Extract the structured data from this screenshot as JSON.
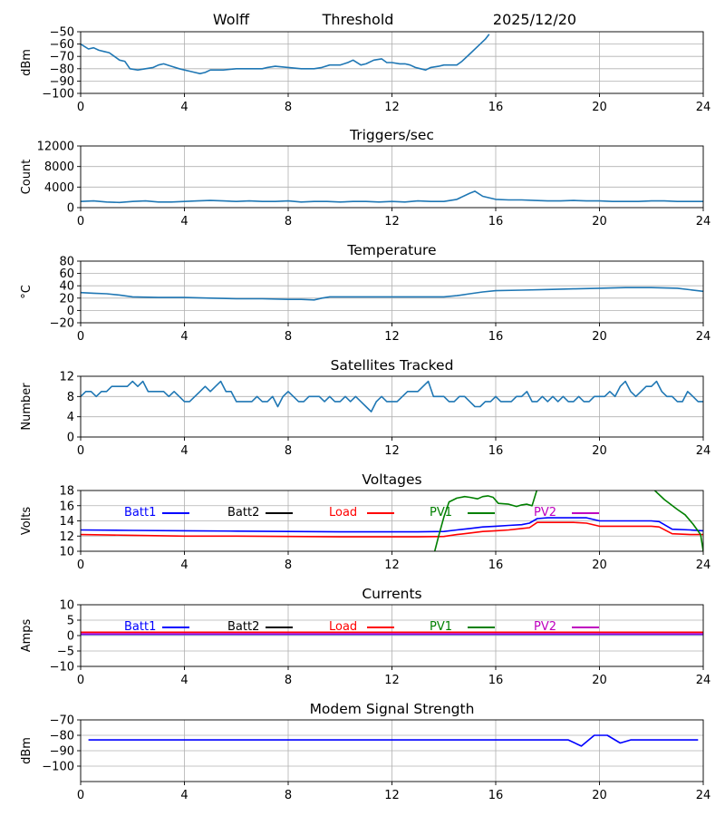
{
  "header": {
    "station": "Wolff",
    "center_title": "Threshold",
    "date": "2025/12/20"
  },
  "colors": {
    "default": "#1f77b4",
    "batt1": "#0000ff",
    "batt2": "#000000",
    "load": "#ff0000",
    "pv1": "#008000",
    "pv2": "#bf00bf",
    "grid": "#b0b0b0",
    "modem": "#0000ff"
  },
  "chart_data": [
    {
      "id": "threshold",
      "type": "line",
      "title": "",
      "ylabel": "dBm",
      "xlim": [
        0,
        24
      ],
      "xticks": [
        0,
        4,
        8,
        12,
        16,
        20,
        24
      ],
      "ylim": [
        -100,
        -50
      ],
      "yticks": [
        -100,
        -90,
        -80,
        -70,
        -60,
        -50
      ],
      "grid": true,
      "series": [
        {
          "name": "Threshold",
          "color": "#1f77b4",
          "x": [
            0,
            0.15,
            0.3,
            0.5,
            0.7,
            0.9,
            1.1,
            1.3,
            1.5,
            1.7,
            1.9,
            2.2,
            2.5,
            2.8,
            3.0,
            3.2,
            3.5,
            3.8,
            4.0,
            4.2,
            4.4,
            4.6,
            4.8,
            5.0,
            5.5,
            6.0,
            6.5,
            7.0,
            7.2,
            7.5,
            8.0,
            8.5,
            9.0,
            9.3,
            9.6,
            10.0,
            10.3,
            10.5,
            10.8,
            11.0,
            11.3,
            11.6,
            11.8,
            12.0,
            12.3,
            12.5,
            12.7,
            12.9,
            13.1,
            13.3,
            13.5,
            13.8,
            14.0,
            14.3,
            14.5,
            14.7,
            15.0,
            15.3,
            15.6,
            15.75
          ],
          "y": [
            -60,
            -62,
            -64,
            -63,
            -65,
            -66,
            -67,
            -70,
            -73,
            -74,
            -80,
            -81,
            -80,
            -79,
            -77,
            -76,
            -78,
            -80,
            -81,
            -82,
            -83,
            -84,
            -83,
            -81,
            -81,
            -80,
            -80,
            -80,
            -79,
            -78,
            -79,
            -80,
            -80,
            -79,
            -77,
            -77,
            -75,
            -73,
            -77,
            -76,
            -73,
            -72,
            -75,
            -75,
            -76,
            -76,
            -77,
            -79,
            -80,
            -81,
            -79,
            -78,
            -77,
            -77,
            -77,
            -74,
            -68,
            -62,
            -56,
            -52
          ]
        }
      ]
    },
    {
      "id": "triggers",
      "type": "line",
      "title": "Triggers/sec",
      "ylabel": "Count",
      "xlim": [
        0,
        24
      ],
      "xticks": [
        0,
        4,
        8,
        12,
        16,
        20,
        24
      ],
      "ylim": [
        0,
        12000
      ],
      "yticks": [
        0,
        4000,
        8000,
        12000
      ],
      "grid": true,
      "series": [
        {
          "name": "Triggers",
          "color": "#1f77b4",
          "x": [
            0,
            0.5,
            1,
            1.5,
            2,
            2.5,
            3,
            3.5,
            4,
            4.5,
            5,
            5.5,
            6,
            6.5,
            7,
            7.5,
            8,
            8.5,
            9,
            9.5,
            10,
            10.5,
            11,
            11.5,
            12,
            12.5,
            13,
            13.5,
            14,
            14.5,
            15,
            15.2,
            15.5,
            16,
            16.5,
            17,
            17.5,
            18,
            18.5,
            19,
            19.5,
            20,
            20.5,
            21,
            21.5,
            22,
            22.5,
            23,
            23.5,
            24
          ],
          "y": [
            1200,
            1300,
            1100,
            1000,
            1200,
            1300,
            1100,
            1100,
            1200,
            1300,
            1400,
            1300,
            1200,
            1300,
            1200,
            1200,
            1300,
            1100,
            1200,
            1200,
            1100,
            1200,
            1200,
            1100,
            1200,
            1100,
            1300,
            1200,
            1200,
            1600,
            2800,
            3200,
            2200,
            1600,
            1500,
            1500,
            1400,
            1300,
            1300,
            1400,
            1300,
            1300,
            1200,
            1200,
            1200,
            1300,
            1300,
            1200,
            1200,
            1200
          ]
        }
      ]
    },
    {
      "id": "temperature",
      "type": "line",
      "title": "Temperature",
      "ylabel": "°C",
      "xlim": [
        0,
        24
      ],
      "xticks": [
        0,
        4,
        8,
        12,
        16,
        20,
        24
      ],
      "ylim": [
        -20,
        80
      ],
      "yticks": [
        -20,
        0,
        20,
        40,
        60,
        80
      ],
      "grid": true,
      "series": [
        {
          "name": "Temperature",
          "color": "#1f77b4",
          "x": [
            0,
            0.5,
            1,
            1.5,
            2,
            3,
            4,
            5,
            6,
            7,
            8,
            8.5,
            9,
            9.3,
            9.6,
            10,
            11,
            12,
            13,
            14,
            14.5,
            15,
            15.5,
            16,
            17,
            18,
            19,
            20,
            21,
            22,
            23,
            24
          ],
          "y": [
            29,
            28,
            27,
            25,
            22,
            21,
            21,
            20,
            19,
            19,
            18,
            18,
            17,
            20,
            22,
            22,
            22,
            22,
            22,
            22,
            24,
            27,
            30,
            32,
            33,
            34,
            35,
            36,
            37,
            37,
            36,
            31
          ]
        }
      ]
    },
    {
      "id": "satellites",
      "type": "line",
      "title": "Satellites Tracked",
      "ylabel": "Number",
      "xlim": [
        0,
        24
      ],
      "xticks": [
        0,
        4,
        8,
        12,
        16,
        20,
        24
      ],
      "ylim": [
        0,
        12
      ],
      "yticks": [
        0,
        4,
        8,
        12
      ],
      "grid": true,
      "series": [
        {
          "name": "Satellites",
          "color": "#1f77b4",
          "x": [
            0,
            0.2,
            0.4,
            0.6,
            0.8,
            1.0,
            1.2,
            1.4,
            1.6,
            1.8,
            2.0,
            2.2,
            2.4,
            2.6,
            2.8,
            3.0,
            3.2,
            3.4,
            3.6,
            3.8,
            4.0,
            4.2,
            4.4,
            4.6,
            4.8,
            5.0,
            5.2,
            5.4,
            5.6,
            5.8,
            6.0,
            6.2,
            6.4,
            6.6,
            6.8,
            7.0,
            7.2,
            7.4,
            7.6,
            7.8,
            8.0,
            8.2,
            8.4,
            8.6,
            8.8,
            9.0,
            9.2,
            9.4,
            9.6,
            9.8,
            10.0,
            10.2,
            10.4,
            10.6,
            10.8,
            11.0,
            11.2,
            11.4,
            11.6,
            11.8,
            12.0,
            12.2,
            12.4,
            12.6,
            12.8,
            13.0,
            13.2,
            13.4,
            13.6,
            13.8,
            14.0,
            14.2,
            14.4,
            14.6,
            14.8,
            15.0,
            15.2,
            15.4,
            15.6,
            15.8,
            16.0,
            16.2,
            16.4,
            16.6,
            16.8,
            17.0,
            17.2,
            17.4,
            17.6,
            17.8,
            18.0,
            18.2,
            18.4,
            18.6,
            18.8,
            19.0,
            19.2,
            19.4,
            19.6,
            19.8,
            20.0,
            20.2,
            20.4,
            20.6,
            20.8,
            21.0,
            21.2,
            21.4,
            21.6,
            21.8,
            22.0,
            22.2,
            22.4,
            22.6,
            22.8,
            23.0,
            23.2,
            23.4,
            23.6,
            23.8,
            24.0
          ],
          "y": [
            8,
            9,
            9,
            8,
            9,
            9,
            10,
            10,
            10,
            10,
            11,
            10,
            11,
            9,
            9,
            9,
            9,
            8,
            9,
            8,
            7,
            7,
            8,
            9,
            10,
            9,
            10,
            11,
            9,
            9,
            7,
            7,
            7,
            7,
            8,
            7,
            7,
            8,
            6,
            8,
            9,
            8,
            7,
            7,
            8,
            8,
            8,
            7,
            8,
            7,
            7,
            8,
            7,
            8,
            7,
            6,
            5,
            7,
            8,
            7,
            7,
            7,
            8,
            9,
            9,
            9,
            10,
            11,
            8,
            8,
            8,
            7,
            7,
            8,
            8,
            7,
            6,
            6,
            7,
            7,
            8,
            7,
            7,
            7,
            8,
            8,
            9,
            7,
            7,
            8,
            7,
            8,
            7,
            8,
            7,
            7,
            8,
            7,
            7,
            8,
            8,
            8,
            9,
            8,
            10,
            11,
            9,
            8,
            9,
            10,
            10,
            11,
            9,
            8,
            8,
            7,
            7,
            9,
            8,
            7,
            7
          ]
        }
      ]
    },
    {
      "id": "voltages",
      "type": "line",
      "title": "Voltages",
      "ylabel": "Volts",
      "xlim": [
        0,
        24
      ],
      "xticks": [
        0,
        4,
        8,
        12,
        16,
        20,
        24
      ],
      "ylim": [
        10,
        18
      ],
      "yticks": [
        10,
        12,
        14,
        16,
        18
      ],
      "grid": true,
      "legend": [
        "Batt1",
        "Batt2",
        "Load",
        "PV1",
        "PV2"
      ],
      "series": [
        {
          "name": "Batt1",
          "color": "#0000ff",
          "x": [
            0,
            2,
            4,
            6,
            8,
            10,
            12,
            13,
            14,
            14.5,
            15,
            15.5,
            16,
            16.5,
            17,
            17.3,
            17.6,
            18,
            19,
            19.5,
            20,
            21,
            22,
            22.3,
            22.8,
            23.5,
            24
          ],
          "y": [
            12.8,
            12.75,
            12.7,
            12.65,
            12.6,
            12.55,
            12.55,
            12.55,
            12.6,
            12.8,
            13.0,
            13.2,
            13.3,
            13.4,
            13.5,
            13.7,
            14.3,
            14.4,
            14.4,
            14.4,
            14.0,
            14.0,
            14.0,
            13.9,
            12.9,
            12.8,
            12.7
          ]
        },
        {
          "name": "Load",
          "color": "#ff0000",
          "x": [
            0,
            2,
            4,
            6,
            8,
            10,
            12,
            13,
            14,
            14.5,
            15,
            15.5,
            16,
            16.5,
            17,
            17.3,
            17.6,
            18,
            19,
            19.5,
            20,
            21,
            22,
            22.3,
            22.8,
            23.5,
            24
          ],
          "y": [
            12.2,
            12.1,
            12.0,
            12.0,
            11.95,
            11.9,
            11.9,
            11.9,
            11.95,
            12.2,
            12.4,
            12.6,
            12.7,
            12.8,
            13.0,
            13.1,
            13.8,
            13.8,
            13.8,
            13.7,
            13.3,
            13.3,
            13.3,
            13.2,
            12.3,
            12.2,
            12.2
          ]
        },
        {
          "name": "PV1",
          "color": "#008000",
          "x": [
            13.65,
            13.8,
            14.0,
            14.2,
            14.5,
            14.8,
            15.0,
            15.3,
            15.5,
            15.7,
            15.9,
            16.1,
            16.5,
            16.8,
            17.0,
            17.2,
            17.4,
            17.6
          ],
          "y": [
            10,
            12,
            14.5,
            16.5,
            17.0,
            17.2,
            17.1,
            16.9,
            17.2,
            17.3,
            17.1,
            16.3,
            16.2,
            15.9,
            16.1,
            16.2,
            16.0,
            18.2
          ]
        },
        {
          "name": "PV1",
          "color": "#008000",
          "x": [
            22.1,
            22.5,
            23.0,
            23.3,
            23.6,
            23.9,
            24.0
          ],
          "y": [
            18.1,
            16.8,
            15.5,
            14.8,
            13.6,
            12.2,
            10.0
          ]
        }
      ]
    },
    {
      "id": "currents",
      "type": "line",
      "title": "Currents",
      "ylabel": "Amps",
      "xlim": [
        0,
        24
      ],
      "xticks": [
        0,
        4,
        8,
        12,
        16,
        20,
        24
      ],
      "ylim": [
        -10,
        10
      ],
      "yticks": [
        -10,
        -5,
        0,
        5,
        10
      ],
      "grid": true,
      "legend": [
        "Batt1",
        "Batt2",
        "Load",
        "PV1",
        "PV2"
      ],
      "series": [
        {
          "name": "Batt1",
          "color": "#0000ff",
          "x": [
            0,
            24
          ],
          "y": [
            0.4,
            0.4
          ]
        },
        {
          "name": "Load",
          "color": "#ff0000",
          "x": [
            0,
            24
          ],
          "y": [
            1.1,
            1.1
          ]
        },
        {
          "name": "PV2",
          "color": "#bf00bf",
          "x": [
            0,
            24
          ],
          "y": [
            0.6,
            0.6
          ]
        }
      ]
    },
    {
      "id": "modem",
      "type": "line",
      "title": "Modem Signal Strength",
      "ylabel": "dBm",
      "xlim": [
        0,
        24
      ],
      "xticks": [
        0,
        4,
        8,
        12,
        16,
        20,
        24
      ],
      "ylim": [
        -110,
        -70
      ],
      "yticks": [
        -100,
        -90,
        -80,
        -70
      ],
      "grid": true,
      "series": [
        {
          "name": "Modem",
          "color": "#0000ff",
          "x": [
            0.3,
            18.8,
            19.3,
            19.8,
            20.3,
            20.8,
            21.2,
            23.8
          ],
          "y": [
            -83,
            -83,
            -87,
            -80,
            -80,
            -85,
            -83,
            -83
          ]
        }
      ]
    }
  ]
}
